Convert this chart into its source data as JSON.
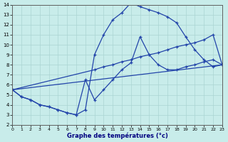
{
  "xlabel": "Graphe des températures (°c)",
  "line1_main": {
    "x": [
      0,
      1,
      2,
      3,
      4,
      5,
      6,
      7,
      8,
      9,
      10,
      11,
      12,
      13,
      14,
      15,
      16,
      17,
      18,
      19,
      20,
      21,
      22,
      23
    ],
    "y": [
      5.5,
      4.8,
      4.5,
      4.0,
      3.8,
      3.5,
      3.2,
      3.0,
      3.5,
      9.0,
      11.0,
      12.5,
      13.2,
      14.2,
      13.8,
      13.5,
      13.2,
      12.8,
      12.2,
      10.8,
      9.5,
      8.5,
      7.8,
      8.0
    ]
  },
  "line2_zigzag": {
    "x": [
      0,
      1,
      2,
      3,
      4,
      5,
      6,
      7,
      8,
      9,
      10,
      11,
      12,
      13,
      14,
      15,
      16,
      17,
      18,
      19,
      20,
      21,
      22,
      23
    ],
    "y": [
      5.5,
      4.8,
      4.5,
      4.0,
      3.8,
      3.5,
      3.2,
      3.0,
      6.5,
      4.5,
      5.5,
      6.5,
      7.5,
      8.2,
      10.8,
      9.0,
      8.0,
      7.5,
      7.5,
      7.8,
      8.0,
      8.3,
      8.5,
      8.0
    ]
  },
  "line3_straight1": {
    "x": [
      0,
      9,
      10,
      11,
      12,
      13,
      14,
      15,
      16,
      17,
      18,
      19,
      20,
      21,
      22,
      23
    ],
    "y": [
      5.5,
      7.5,
      7.8,
      8.0,
      8.3,
      8.5,
      8.8,
      9.0,
      9.2,
      9.5,
      9.8,
      10.0,
      10.2,
      10.5,
      11.0,
      8.0
    ]
  },
  "line4_straight2": {
    "x": [
      0,
      23
    ],
    "y": [
      5.5,
      8.0
    ]
  },
  "line_color": "#2244aa",
  "background_color": "#c8ecea",
  "grid_color": "#aad4d2",
  "xlim": [
    0,
    23
  ],
  "ylim": [
    2,
    14
  ],
  "xticks": [
    0,
    1,
    2,
    3,
    4,
    5,
    6,
    7,
    8,
    9,
    10,
    11,
    12,
    13,
    14,
    15,
    16,
    17,
    18,
    19,
    20,
    21,
    22,
    23
  ],
  "yticks": [
    2,
    3,
    4,
    5,
    6,
    7,
    8,
    9,
    10,
    11,
    12,
    13,
    14
  ]
}
